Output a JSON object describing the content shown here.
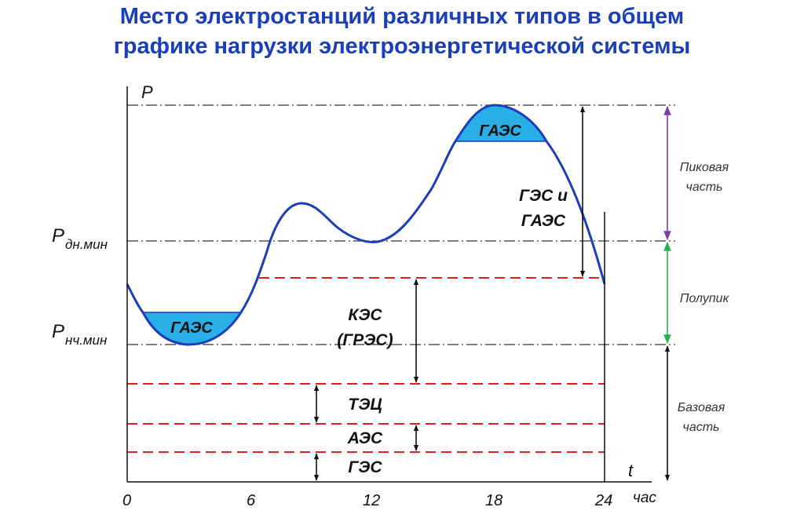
{
  "title": {
    "line1": "Место электростанций различных типов в общем",
    "line2": "графике нагрузки электроэнергетической системы"
  },
  "axes": {
    "y_label": "P",
    "x_label": "t",
    "x_unit": "час",
    "x_ticks": [
      "0",
      "6",
      "12",
      "18",
      "24"
    ]
  },
  "levels": {
    "p_day_min": {
      "main": "P",
      "sub": "дн.мин"
    },
    "p_night_min": {
      "main": "P",
      "sub": "нч.мин"
    }
  },
  "stations": {
    "gaes_night": "ГАЭС",
    "gaes_peak": "ГАЭС",
    "ges_gaes_line1": "ГЭС и",
    "ges_gaes_line2": "ГАЭС",
    "kes_line1": "КЭС",
    "kes_line2": "(ГРЭС)",
    "tec": "ТЭЦ",
    "aes": "АЭС",
    "ges": "ГЭС"
  },
  "zones": {
    "peak_line1": "Пиковая",
    "peak_line2": "часть",
    "semipeak": "Полупик",
    "base_line1": "Базовая",
    "base_line2": "часть"
  },
  "colors": {
    "title": "#1a3fb8",
    "curve": "#1a3fb8",
    "fill": "#29aee6",
    "dashed": "#e02020",
    "peak_arrow": "#7b3fa8",
    "semipeak_arrow": "#22b24c",
    "base_arrow": "#111111"
  }
}
